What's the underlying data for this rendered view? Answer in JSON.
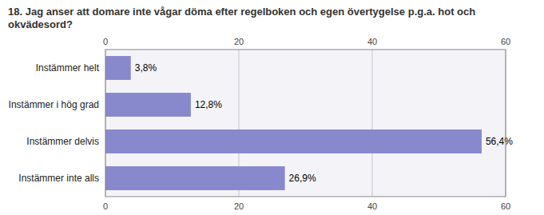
{
  "chart_data": {
    "type": "bar",
    "orientation": "horizontal",
    "title": "18. Jag anser att domare inte vågar döma efter regelboken och egen övertygelse p.g.a. hot och okvädesord?",
    "categories": [
      "Instämmer helt",
      "Instämmer i hög grad",
      "Instämmer delvis",
      "Instämmer inte alls"
    ],
    "values": [
      3.8,
      12.8,
      56.4,
      26.9
    ],
    "value_labels": [
      "3,8%",
      "12,8%",
      "56,4%",
      "26,9%"
    ],
    "color": "#8888cc",
    "xlim": [
      0,
      60
    ],
    "xticks": [
      0,
      20,
      40,
      60
    ],
    "grid": true,
    "data_labels": true
  }
}
